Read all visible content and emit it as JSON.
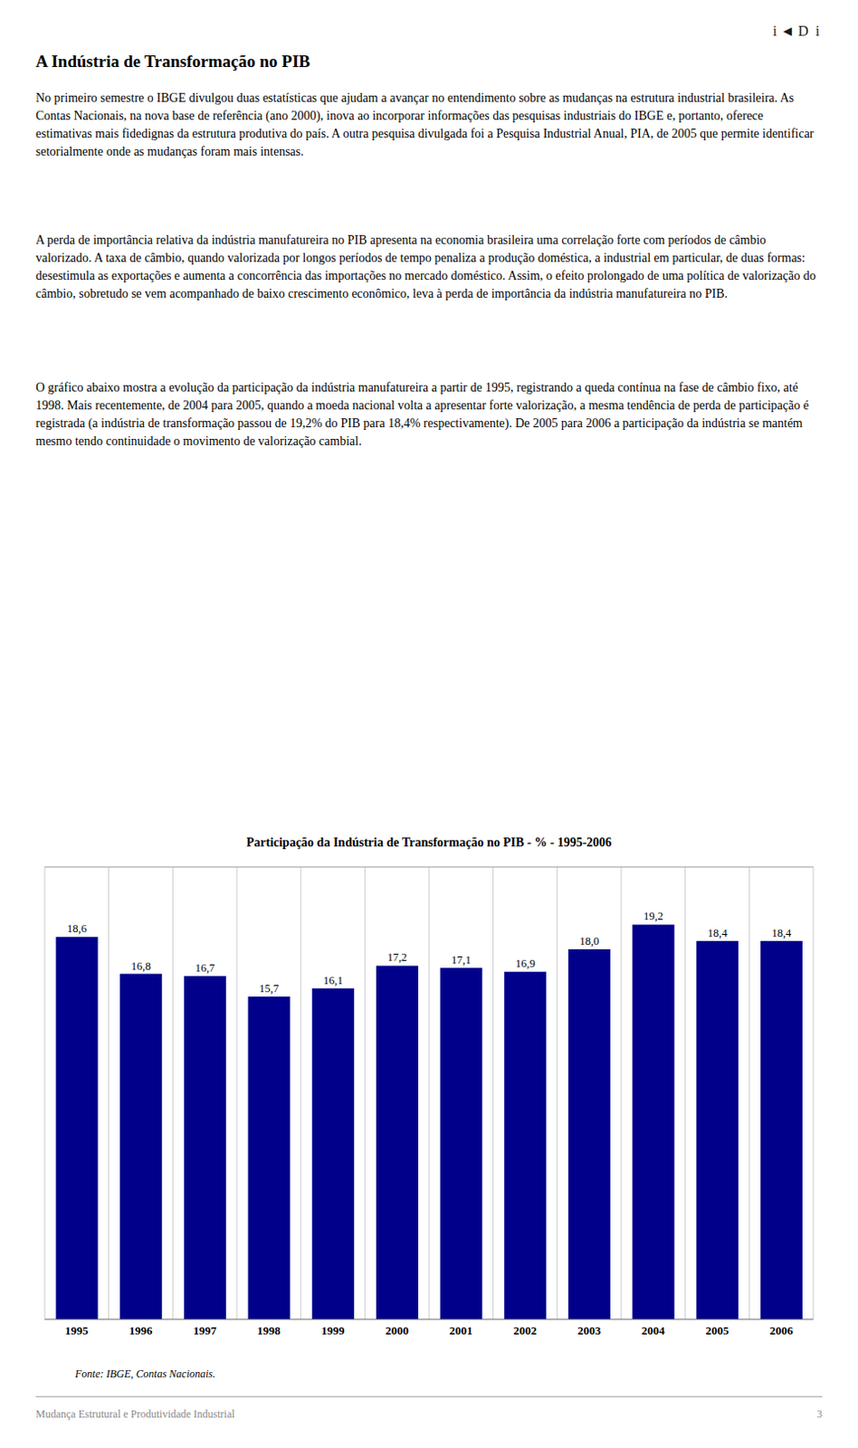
{
  "chart_data": {
    "type": "bar",
    "title": "Participação da Indústria de Transformação no PIB - % - 1995-2006",
    "categories": [
      "1995",
      "1996",
      "1997",
      "1998",
      "1999",
      "2000",
      "2001",
      "2002",
      "2003",
      "2004",
      "2005",
      "2006"
    ],
    "values": [
      18.6,
      16.8,
      16.7,
      15.7,
      16.1,
      17.2,
      17.1,
      16.9,
      18.0,
      19.2,
      18.4,
      18.4
    ],
    "value_labels": [
      "18,6",
      "16,8",
      "16,7",
      "15,7",
      "16,1",
      "17,2",
      "17,1",
      "16,9",
      "18,0",
      "19,2",
      "18,4",
      "18,4"
    ],
    "data_labels": true,
    "color": "#00008B",
    "ylim": [
      0,
      22
    ],
    "grid": true,
    "tick_labels": "x",
    "annotations": [
      "i ◄ D  i",
      "A Indústria de Transformação no PIB",
      "No primeiro semestre o IBGE divulgou duas estatísticas que ajudam a avançar no entendimento sobre as mudanças na estrutura industrial brasileira. As Contas Nacionais, na nova base de referência (ano 2000), inova ao incorporar informações das pesquisas industriais do IBGE e, portanto, oferece estimativas mais fidedignas da estrutura produtiva do país. A outra pesquisa divulgada foi a Pesquisa Industrial Anual, PIA, de 2005 que permite identificar setorialmente onde as mudanças foram mais intensas.",
      "A perda de importância relativa da indústria manufatureira no PIB apresenta na economia brasileira uma correlação forte com períodos de câmbio valorizado. A taxa de câmbio, quando valorizada por longos períodos de tempo penaliza a produção doméstica, a industrial em particular, de duas formas: desestimula as exportações e aumenta a concorrência das importações no mercado doméstico. Assim, o efeito prolongado de uma política de valorização do câmbio, sobretudo se vem acompanhado de baixo crescimento econômico, leva à perda de importância da indústria manufatureira no PIB.",
      "O gráfico abaixo mostra a evolução da participação da indústria manufatureira a partir de 1995, registrando a queda contínua na fase de câmbio fixo, até 1998. Mais recentemente, de 2004 para 2005, quando a moeda nacional volta a apresentar forte valorização, a mesma tendência de perda de participação é registrada (a indústria de transformação passou de 19,2% do PIB para 18,4% respectivamente). De 2005 para 2006 a participação da indústria se mantém mesmo tendo continuidade o movimento de valorização cambial.",
      "Fonte: IBGE, Contas Nacionais.",
      "Mudança Estrutural e Produtividade Industrial",
      "3"
    ]
  }
}
